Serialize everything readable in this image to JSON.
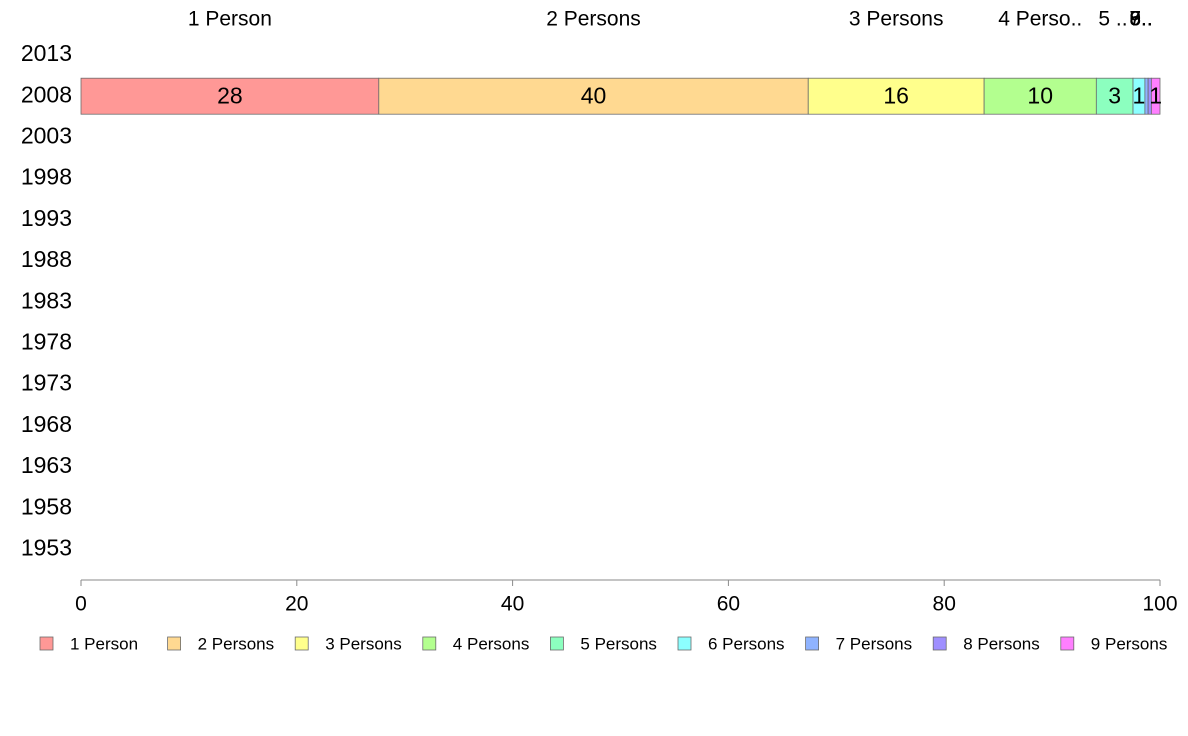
{
  "chart_data": {
    "type": "bar",
    "orientation": "horizontal",
    "stacked": true,
    "title": "",
    "xlabel": "",
    "ylabel": "",
    "xlim": [
      0,
      100
    ],
    "x_ticks": [
      "0",
      "20",
      "40",
      "60",
      "80",
      "100"
    ],
    "categories": [
      "2013",
      "2008",
      "2003",
      "1998",
      "1993",
      "1988",
      "1983",
      "1978",
      "1973",
      "1968",
      "1963",
      "1958",
      "1953"
    ],
    "column_headers": [
      "1 Person",
      "2 Persons",
      "3 Persons",
      "4 Perso..",
      "5 ..",
      "6..",
      "7..",
      "8..",
      "9.."
    ],
    "series": [
      {
        "name": "1 Person",
        "color": "#ff9896",
        "values": [
          null,
          27.6,
          null,
          null,
          null,
          null,
          null,
          null,
          null,
          null,
          null,
          null,
          null
        ],
        "value_labels": [
          "",
          "28",
          "",
          "",
          "",
          "",
          "",
          "",
          "",
          "",
          "",
          "",
          ""
        ]
      },
      {
        "name": "2 Persons",
        "color": "#ffd991",
        "values": [
          null,
          39.8,
          null,
          null,
          null,
          null,
          null,
          null,
          null,
          null,
          null,
          null,
          null
        ],
        "value_labels": [
          "",
          "40",
          "",
          "",
          "",
          "",
          "",
          "",
          "",
          "",
          "",
          "",
          ""
        ]
      },
      {
        "name": "3 Persons",
        "color": "#ffff8c",
        "values": [
          null,
          16.3,
          null,
          null,
          null,
          null,
          null,
          null,
          null,
          null,
          null,
          null,
          null
        ],
        "value_labels": [
          "",
          "16",
          "",
          "",
          "",
          "",
          "",
          "",
          "",
          "",
          "",
          "",
          ""
        ]
      },
      {
        "name": "4 Persons",
        "color": "#b3ff8f",
        "values": [
          null,
          10.4,
          null,
          null,
          null,
          null,
          null,
          null,
          null,
          null,
          null,
          null,
          null
        ],
        "value_labels": [
          "",
          "10",
          "",
          "",
          "",
          "",
          "",
          "",
          "",
          "",
          "",
          "",
          ""
        ]
      },
      {
        "name": "5 Persons",
        "color": "#8cffbf",
        "values": [
          null,
          3.4,
          null,
          null,
          null,
          null,
          null,
          null,
          null,
          null,
          null,
          null,
          null
        ],
        "value_labels": [
          "",
          "3",
          "",
          "",
          "",
          "",
          "",
          "",
          "",
          "",
          "",
          "",
          ""
        ]
      },
      {
        "name": "6 Persons",
        "color": "#8cffff",
        "values": [
          null,
          1.1,
          null,
          null,
          null,
          null,
          null,
          null,
          null,
          null,
          null,
          null,
          null
        ],
        "value_labels": [
          "",
          "1",
          "",
          "",
          "",
          "",
          "",
          "",
          "",
          "",
          "",
          "",
          ""
        ]
      },
      {
        "name": "7 Persons",
        "color": "#8fb3ff",
        "values": [
          null,
          0.3,
          null,
          null,
          null,
          null,
          null,
          null,
          null,
          null,
          null,
          null,
          null
        ],
        "value_labels": [
          "",
          "",
          "",
          "",
          "",
          "",
          "",
          "",
          "",
          "",
          "",
          "",
          ""
        ]
      },
      {
        "name": "8 Persons",
        "color": "#9f8fff",
        "values": [
          null,
          0.3,
          null,
          null,
          null,
          null,
          null,
          null,
          null,
          null,
          null,
          null,
          null
        ],
        "value_labels": [
          "",
          "",
          "",
          "",
          "",
          "",
          "",
          "",
          "",
          "",
          "",
          "",
          ""
        ]
      },
      {
        "name": "9 Persons",
        "color": "#ff7fff",
        "values": [
          null,
          0.8,
          null,
          null,
          null,
          null,
          null,
          null,
          null,
          null,
          null,
          null,
          null
        ],
        "value_labels": [
          "",
          "1",
          "",
          "",
          "",
          "",
          "",
          "",
          "",
          "",
          "",
          "",
          ""
        ]
      }
    ],
    "legend_position": "bottom",
    "grid": false
  }
}
